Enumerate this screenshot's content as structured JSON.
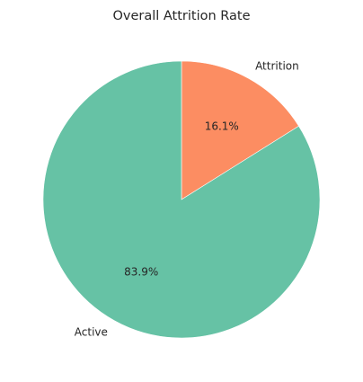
{
  "chart_data": {
    "type": "pie",
    "title": "Overall Attrition Rate",
    "labels": [
      "Attrition",
      "Active"
    ],
    "values": [
      16.1,
      83.9
    ],
    "percent_labels": [
      "16.1%",
      "83.9%"
    ],
    "colors": [
      "#fc8d62",
      "#66c2a5"
    ],
    "start_angle": 90,
    "direction": "clockwise"
  }
}
